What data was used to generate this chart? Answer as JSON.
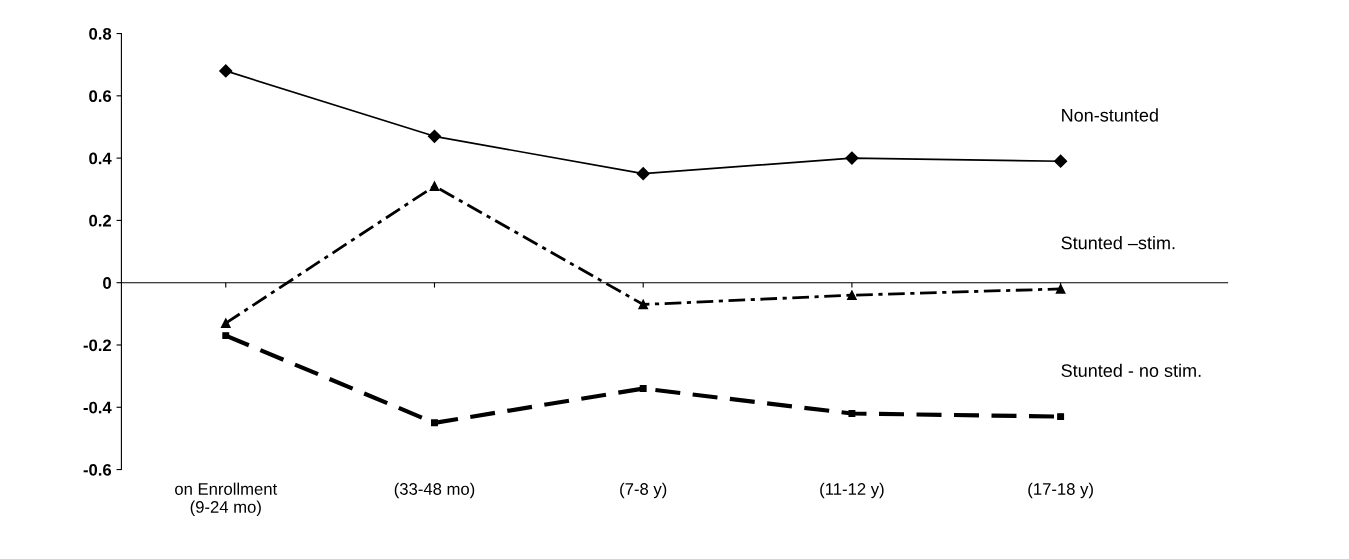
{
  "chart_data": {
    "type": "line",
    "categories": [
      "on Enrollment\n(9-24 mo)",
      "(33-48 mo)",
      "(7-8 y)",
      "(11-12 y)",
      "(17-18 y)"
    ],
    "series": [
      {
        "name": "Non-stunted",
        "color": "#000000",
        "values": [
          0.68,
          0.47,
          0.35,
          0.4,
          0.39
        ],
        "marker": "diamond",
        "line_style": "solid"
      },
      {
        "name": "Stunted –stim.",
        "color": "#000000",
        "values": [
          -0.13,
          0.31,
          -0.07,
          -0.04,
          -0.02
        ],
        "marker": "triangle",
        "line_style": "dashdot"
      },
      {
        "name": "Stunted - no stim.",
        "color": "#000000",
        "values": [
          -0.17,
          -0.45,
          -0.34,
          -0.42,
          -0.43
        ],
        "marker": "square",
        "line_style": "dashed"
      }
    ],
    "ylim": [
      -0.6,
      0.8
    ],
    "yticks": [
      {
        "value": -0.6,
        "label": "-0.6"
      },
      {
        "value": -0.4,
        "label": "-0.4"
      },
      {
        "value": -0.2,
        "label": "-0.2"
      },
      0,
      0.2,
      0.4,
      0.6,
      0.8
    ],
    "legend": false
  }
}
